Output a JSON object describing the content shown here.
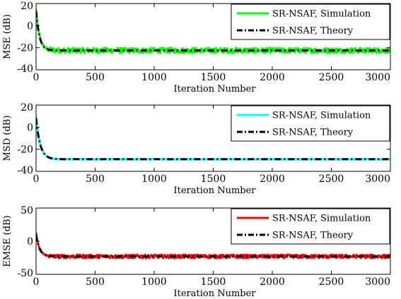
{
  "chart_data": [
    {
      "type": "line",
      "xlabel": "Iteration Number",
      "ylabel": "MSE (dB)",
      "xlim": [
        0,
        3000
      ],
      "ylim": [
        -40,
        20
      ],
      "xticks": [
        0,
        500,
        1000,
        1500,
        2000,
        2500,
        3000
      ],
      "yticks": [
        -40,
        -20,
        0,
        20
      ],
      "grid": false,
      "legend_position": "top-right",
      "series": [
        {
          "name": "SR-NSAF, Simulation",
          "color": "#00ff00",
          "style": "solid",
          "initial": 15,
          "steady_state": -22.5,
          "convergence_iterations": 100,
          "noise_amplitude_db": 2.5
        },
        {
          "name": "SR-NSAF, Theory",
          "color": "#000000",
          "style": "dashdot",
          "initial": 13,
          "steady_state": -22.5,
          "convergence_iterations": 100,
          "noise_amplitude_db": 0
        }
      ]
    },
    {
      "type": "line",
      "xlabel": "Iteration Number",
      "ylabel": "MSD (dB)",
      "xlim": [
        0,
        3000
      ],
      "ylim": [
        -40,
        20
      ],
      "xticks": [
        0,
        500,
        1000,
        1500,
        2000,
        2500,
        3000
      ],
      "yticks": [
        -40,
        -20,
        0,
        20
      ],
      "grid": false,
      "legend_position": "top-right",
      "series": [
        {
          "name": "SR-NSAF, Simulation",
          "color": "#00ffff",
          "style": "solid",
          "initial": 10,
          "steady_state": -29,
          "convergence_iterations": 120,
          "noise_amplitude_db": 0.4
        },
        {
          "name": "SR-NSAF, Theory",
          "color": "#000000",
          "style": "dashdot",
          "initial": 8,
          "steady_state": -29,
          "convergence_iterations": 120,
          "noise_amplitude_db": 0
        }
      ]
    },
    {
      "type": "line",
      "xlabel": "Iteration Number",
      "ylabel": "EMSE (dB)",
      "xlim": [
        0,
        3000
      ],
      "ylim": [
        -50,
        50
      ],
      "xticks": [
        0,
        500,
        1000,
        1500,
        2000,
        2500,
        3000
      ],
      "yticks": [
        -50,
        0,
        50
      ],
      "grid": false,
      "legend_position": "top-right",
      "series": [
        {
          "name": "SR-NSAF, Simulation",
          "color": "#ff0000",
          "style": "solid",
          "initial": 12,
          "steady_state": -23,
          "convergence_iterations": 100,
          "noise_amplitude_db": 3
        },
        {
          "name": "SR-NSAF, Theory",
          "color": "#000000",
          "style": "dashdot",
          "initial": 10,
          "steady_state": -23,
          "convergence_iterations": 100,
          "noise_amplitude_db": 0
        }
      ]
    }
  ]
}
